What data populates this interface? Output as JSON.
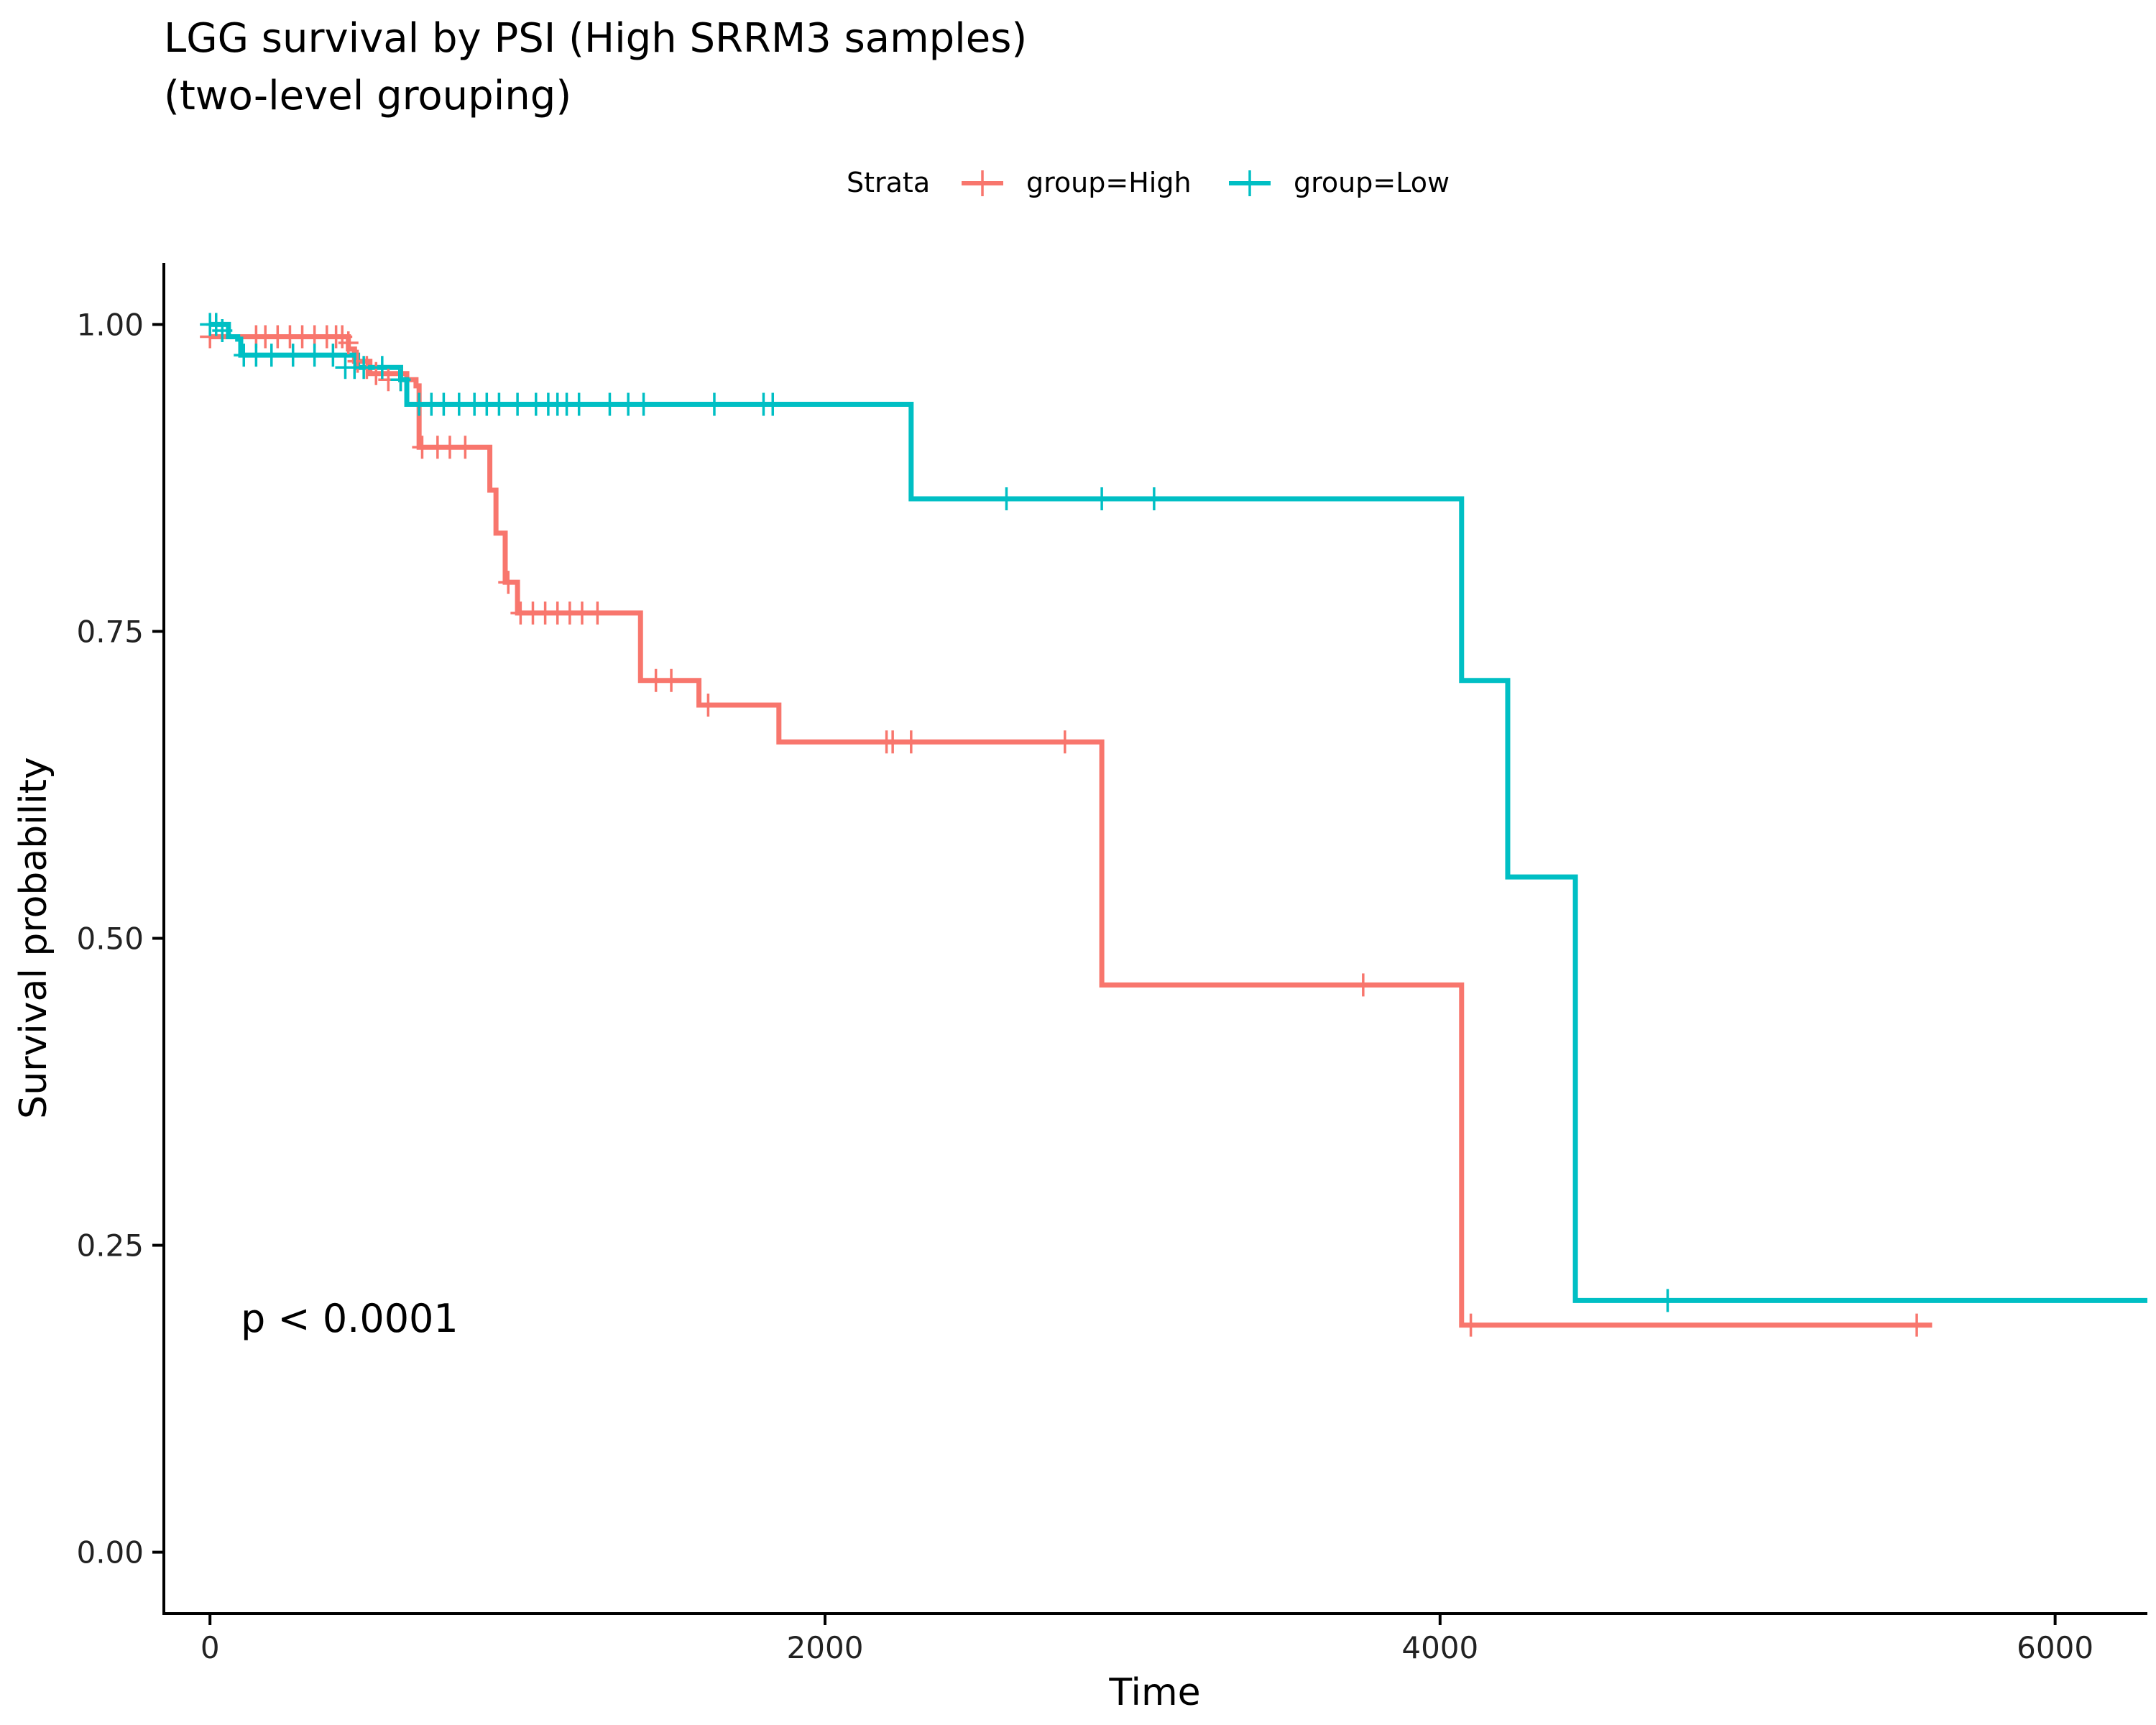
{
  "chart_data": {
    "type": "line",
    "step": true,
    "title_line1": "LGG survival by PSI (High SRRM3 samples)",
    "title_line2": "(two-level grouping)",
    "xlabel": "Time",
    "ylabel": "Survival probability",
    "xlim": [
      -150,
      6300
    ],
    "ylim": [
      -0.05,
      1.05
    ],
    "x_ticks": [
      0,
      2000,
      4000,
      6000
    ],
    "x_tick_labels": [
      "0",
      "2000",
      "4000",
      "6000"
    ],
    "y_ticks": [
      0,
      0.25,
      0.5,
      0.75,
      1
    ],
    "y_tick_labels": [
      "0.00",
      "0.25",
      "0.50",
      "0.75",
      "1.00"
    ],
    "legend": {
      "title": "Strata",
      "position": "top"
    },
    "annotation": {
      "text": "p < 0.0001",
      "x": 100,
      "y": 0.19
    },
    "grid": false,
    "series": [
      {
        "name": "group=High",
        "color": "#F8766D",
        "steps": [
          [
            0,
            0.99
          ],
          [
            420,
            0.99
          ],
          [
            450,
            0.98
          ],
          [
            470,
            0.97
          ],
          [
            520,
            0.96
          ],
          [
            640,
            0.955
          ],
          [
            670,
            0.95
          ],
          [
            680,
            0.9
          ],
          [
            900,
            0.9
          ],
          [
            910,
            0.865
          ],
          [
            930,
            0.83
          ],
          [
            960,
            0.79
          ],
          [
            1000,
            0.765
          ],
          [
            1400,
            0.765
          ],
          [
            1400,
            0.71
          ],
          [
            1590,
            0.71
          ],
          [
            1590,
            0.69
          ],
          [
            1850,
            0.69
          ],
          [
            1850,
            0.66
          ],
          [
            2900,
            0.66
          ],
          [
            2900,
            0.462
          ],
          [
            4070,
            0.462
          ],
          [
            4070,
            0.185
          ],
          [
            5600,
            0.185
          ]
        ],
        "censors": [
          [
            0,
            0.99
          ],
          [
            150,
            0.99
          ],
          [
            180,
            0.99
          ],
          [
            220,
            0.99
          ],
          [
            260,
            0.99
          ],
          [
            300,
            0.99
          ],
          [
            340,
            0.99
          ],
          [
            380,
            0.99
          ],
          [
            410,
            0.99
          ],
          [
            430,
            0.99
          ],
          [
            450,
            0.985
          ],
          [
            480,
            0.97
          ],
          [
            510,
            0.965
          ],
          [
            540,
            0.96
          ],
          [
            580,
            0.955
          ],
          [
            620,
            0.955
          ],
          [
            690,
            0.9
          ],
          [
            740,
            0.9
          ],
          [
            780,
            0.9
          ],
          [
            830,
            0.9
          ],
          [
            970,
            0.79
          ],
          [
            1010,
            0.765
          ],
          [
            1050,
            0.765
          ],
          [
            1090,
            0.765
          ],
          [
            1130,
            0.765
          ],
          [
            1170,
            0.765
          ],
          [
            1210,
            0.765
          ],
          [
            1260,
            0.765
          ],
          [
            1450,
            0.71
          ],
          [
            1500,
            0.71
          ],
          [
            1620,
            0.69
          ],
          [
            2200,
            0.66
          ],
          [
            2220,
            0.66
          ],
          [
            2280,
            0.66
          ],
          [
            2780,
            0.66
          ],
          [
            3750,
            0.462
          ],
          [
            4100,
            0.185
          ],
          [
            5550,
            0.185
          ]
        ]
      },
      {
        "name": "group=Low",
        "color": "#00BFC4",
        "steps": [
          [
            0,
            1.0
          ],
          [
            40,
            1.0
          ],
          [
            60,
            0.99
          ],
          [
            90,
            0.988
          ],
          [
            100,
            0.975
          ],
          [
            470,
            0.975
          ],
          [
            480,
            0.965
          ],
          [
            600,
            0.965
          ],
          [
            620,
            0.955
          ],
          [
            640,
            0.935
          ],
          [
            2280,
            0.935
          ],
          [
            2280,
            0.858
          ],
          [
            4070,
            0.858
          ],
          [
            4070,
            0.71
          ],
          [
            4220,
            0.71
          ],
          [
            4220,
            0.55
          ],
          [
            4440,
            0.55
          ],
          [
            4440,
            0.205
          ],
          [
            6300,
            0.205
          ]
        ],
        "censors": [
          [
            0,
            1.0
          ],
          [
            20,
            1.0
          ],
          [
            40,
            0.995
          ],
          [
            110,
            0.975
          ],
          [
            150,
            0.975
          ],
          [
            200,
            0.975
          ],
          [
            270,
            0.975
          ],
          [
            340,
            0.975
          ],
          [
            400,
            0.975
          ],
          [
            440,
            0.965
          ],
          [
            470,
            0.965
          ],
          [
            500,
            0.965
          ],
          [
            560,
            0.965
          ],
          [
            620,
            0.955
          ],
          [
            680,
            0.935
          ],
          [
            720,
            0.935
          ],
          [
            760,
            0.935
          ],
          [
            810,
            0.935
          ],
          [
            860,
            0.935
          ],
          [
            900,
            0.935
          ],
          [
            940,
            0.935
          ],
          [
            1000,
            0.935
          ],
          [
            1060,
            0.935
          ],
          [
            1100,
            0.935
          ],
          [
            1130,
            0.935
          ],
          [
            1160,
            0.935
          ],
          [
            1200,
            0.935
          ],
          [
            1300,
            0.935
          ],
          [
            1360,
            0.935
          ],
          [
            1410,
            0.935
          ],
          [
            1640,
            0.935
          ],
          [
            1800,
            0.935
          ],
          [
            1830,
            0.935
          ],
          [
            2590,
            0.858
          ],
          [
            2900,
            0.858
          ],
          [
            3070,
            0.858
          ],
          [
            4740,
            0.205
          ]
        ]
      }
    ]
  }
}
